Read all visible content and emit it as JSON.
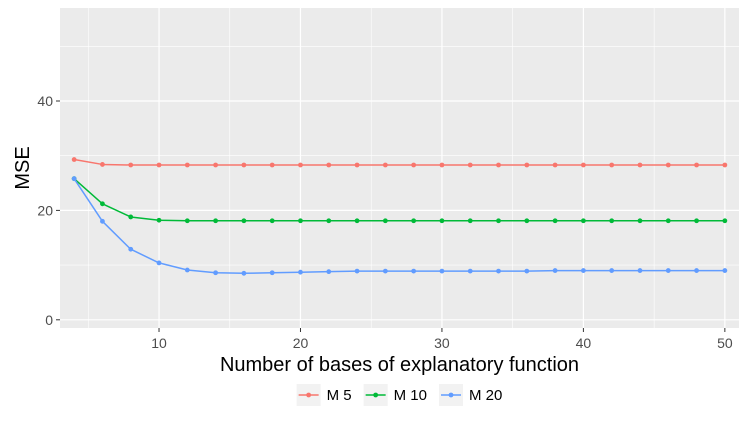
{
  "chart_data": {
    "type": "line",
    "title": "",
    "xlabel": "Number of bases of explanatory function",
    "ylabel": "MSE",
    "xlim": [
      3,
      51
    ],
    "ylim": [
      -1.5,
      57
    ],
    "x_ticks": [
      10,
      20,
      30,
      40,
      50
    ],
    "y_ticks": [
      0,
      20,
      40
    ],
    "x_tick_labels": [
      "10",
      "20",
      "30",
      "40",
      "50"
    ],
    "y_tick_labels": [
      "0",
      "20",
      "40"
    ],
    "grid": true,
    "legend_position": "bottom",
    "x": [
      4,
      6,
      8,
      10,
      12,
      14,
      16,
      18,
      20,
      22,
      24,
      26,
      28,
      30,
      32,
      34,
      36,
      38,
      40,
      42,
      44,
      46,
      48,
      50
    ],
    "series": [
      {
        "name": "M 5",
        "color": "#F8766D",
        "values": [
          29.3,
          28.4,
          28.3,
          28.3,
          28.3,
          28.3,
          28.3,
          28.3,
          28.3,
          28.3,
          28.3,
          28.3,
          28.3,
          28.3,
          28.3,
          28.3,
          28.3,
          28.3,
          28.3,
          28.3,
          28.3,
          28.3,
          28.3,
          28.3
        ]
      },
      {
        "name": "M 10",
        "color": "#00BA38",
        "values": [
          25.8,
          21.2,
          18.8,
          18.2,
          18.1,
          18.1,
          18.1,
          18.1,
          18.1,
          18.1,
          18.1,
          18.1,
          18.1,
          18.1,
          18.1,
          18.1,
          18.1,
          18.1,
          18.1,
          18.1,
          18.1,
          18.1,
          18.1,
          18.1
        ]
      },
      {
        "name": "M 20",
        "color": "#619CFF",
        "values": [
          25.8,
          18.0,
          12.9,
          10.4,
          9.1,
          8.6,
          8.5,
          8.6,
          8.7,
          8.8,
          8.9,
          8.9,
          8.9,
          8.9,
          8.9,
          8.9,
          8.9,
          9.0,
          9.0,
          9.0,
          9.0,
          9.0,
          9.0,
          9.0
        ]
      }
    ]
  }
}
